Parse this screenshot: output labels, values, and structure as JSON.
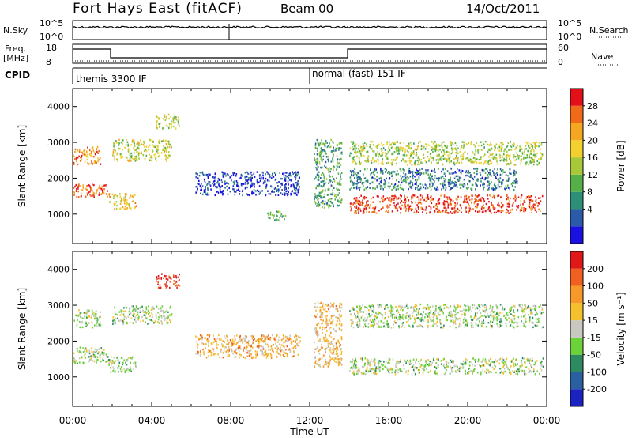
{
  "header": {
    "station": "Fort Hays East (fitACF)",
    "beam": "Beam 00",
    "date": "14/Oct/2011"
  },
  "panels": {
    "nsky": {
      "left_label": "N.Sky",
      "left_ticks": [
        "10^5",
        "10^0"
      ],
      "right_label": "N.Search",
      "right_ticks": [
        "10^5",
        "10^0"
      ]
    },
    "freq": {
      "left_label_1": "Freq.",
      "left_label_2": "[MHz]",
      "left_ticks": [
        "18",
        "8"
      ],
      "right_label": "Nave",
      "right_ticks": [
        "60",
        "0"
      ]
    },
    "cpid": {
      "label": "CPID",
      "modes": [
        {
          "text": "themis 3300 IF",
          "start_hour": 0
        },
        {
          "text": "normal (fast) 151 IF",
          "start_hour": 12
        }
      ]
    }
  },
  "chart_data": [
    {
      "type": "heatmap",
      "name": "power",
      "ylabel": "Slant Range [km]",
      "xlabel": "Time UT",
      "ylim": [
        180,
        4500
      ],
      "xlim": [
        0,
        24
      ],
      "y_ticks": [
        "1000",
        "2000",
        "3000",
        "4000"
      ],
      "x_ticks": [
        "00:00",
        "04:00",
        "08:00",
        "12:00",
        "16:00",
        "20:00",
        "00:00"
      ],
      "colorbar": {
        "label": "Power [dB]",
        "ticks": [
          "28",
          "24",
          "20",
          "16",
          "12",
          "8",
          "4"
        ],
        "colors": [
          "#1a10e0",
          "#2a5aa8",
          "#2e8f78",
          "#56b04a",
          "#a8c83a",
          "#f2d02e",
          "#f5a623",
          "#f06a1a",
          "#e3101a"
        ]
      },
      "echo_regions": [
        {
          "t": [
            0.0,
            1.8
          ],
          "r": [
            1500,
            1850
          ],
          "level": 0.85
        },
        {
          "t": [
            0.0,
            1.4
          ],
          "r": [
            2400,
            2900
          ],
          "level": 0.75
        },
        {
          "t": [
            1.8,
            3.2
          ],
          "r": [
            1150,
            1600
          ],
          "level": 0.65
        },
        {
          "t": [
            2.0,
            5.0
          ],
          "r": [
            2500,
            3100
          ],
          "level": 0.55
        },
        {
          "t": [
            4.2,
            5.4
          ],
          "r": [
            3400,
            3800
          ],
          "level": 0.5
        },
        {
          "t": [
            6.2,
            11.5
          ],
          "r": [
            1550,
            2200
          ],
          "level": 0.1
        },
        {
          "t": [
            9.8,
            10.8
          ],
          "r": [
            850,
            1100
          ],
          "level": 0.35
        },
        {
          "t": [
            12.2,
            13.6
          ],
          "r": [
            1200,
            3100
          ],
          "level": 0.35
        },
        {
          "t": [
            14.0,
            23.8
          ],
          "r": [
            1050,
            1550
          ],
          "level": 0.92
        },
        {
          "t": [
            14.0,
            23.8
          ],
          "r": [
            2400,
            3050
          ],
          "level": 0.5
        },
        {
          "t": [
            14.0,
            22.5
          ],
          "r": [
            1700,
            2300
          ],
          "level": 0.25
        }
      ]
    },
    {
      "type": "heatmap",
      "name": "velocity",
      "ylabel": "Slant Range [km]",
      "xlabel": "Time UT",
      "ylim": [
        180,
        4500
      ],
      "xlim": [
        0,
        24
      ],
      "y_ticks": [
        "1000",
        "2000",
        "3000",
        "4000"
      ],
      "x_ticks": [
        "00:00",
        "04:00",
        "08:00",
        "12:00",
        "16:00",
        "20:00",
        "00:00"
      ],
      "colorbar": {
        "label": "Velocity [m s⁻¹]",
        "ticks": [
          "200",
          "100",
          "50",
          "15",
          "-15",
          "-50",
          "-100",
          "-200"
        ],
        "colors": [
          "#1a22c0",
          "#2a60a0",
          "#2e8a60",
          "#6cd23a",
          "#c8c8c0",
          "#f5c030",
          "#f59a28",
          "#f06020",
          "#e01818"
        ]
      },
      "echo_regions": [
        {
          "t": [
            0.0,
            1.8
          ],
          "r": [
            1400,
            1850
          ],
          "level": 0.45
        },
        {
          "t": [
            0.0,
            1.4
          ],
          "r": [
            2400,
            2900
          ],
          "level": 0.45
        },
        {
          "t": [
            1.8,
            3.2
          ],
          "r": [
            1150,
            1600
          ],
          "level": 0.45
        },
        {
          "t": [
            2.0,
            5.0
          ],
          "r": [
            2500,
            3000
          ],
          "level": 0.45
        },
        {
          "t": [
            4.2,
            5.4
          ],
          "r": [
            3500,
            3900
          ],
          "level": 0.95
        },
        {
          "t": [
            6.2,
            11.5
          ],
          "r": [
            1550,
            2200
          ],
          "level": 0.65
        },
        {
          "t": [
            12.2,
            13.6
          ],
          "r": [
            1300,
            3100
          ],
          "level": 0.62
        },
        {
          "t": [
            14.0,
            23.8
          ],
          "r": [
            1100,
            1550
          ],
          "level": 0.45
        },
        {
          "t": [
            14.0,
            23.8
          ],
          "r": [
            2400,
            3050
          ],
          "level": 0.45
        }
      ]
    }
  ]
}
